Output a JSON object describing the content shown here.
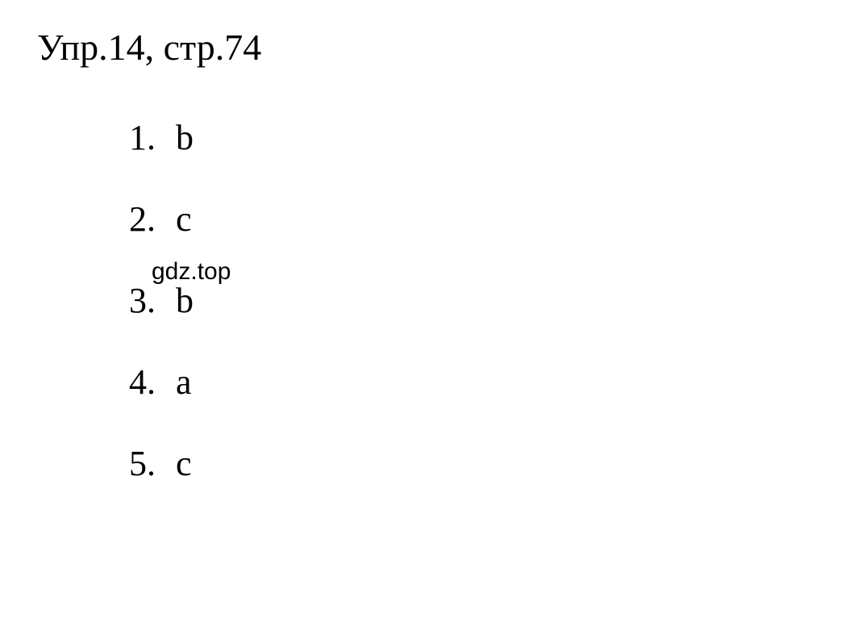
{
  "title": "Упр.14, стр.74",
  "items": [
    {
      "number": "1.",
      "value": "b"
    },
    {
      "number": "2.",
      "value": "c"
    },
    {
      "number": "3.",
      "value": "b"
    },
    {
      "number": "4.",
      "value": "a"
    },
    {
      "number": "5.",
      "value": "c"
    }
  ],
  "watermark": "gdz.top",
  "colors": {
    "background": "#ffffff",
    "text": "#000000"
  },
  "typography": {
    "title_fontsize": 46,
    "item_fontsize": 44,
    "watermark_fontsize": 30,
    "title_font": "Times New Roman",
    "watermark_font": "Arial"
  }
}
